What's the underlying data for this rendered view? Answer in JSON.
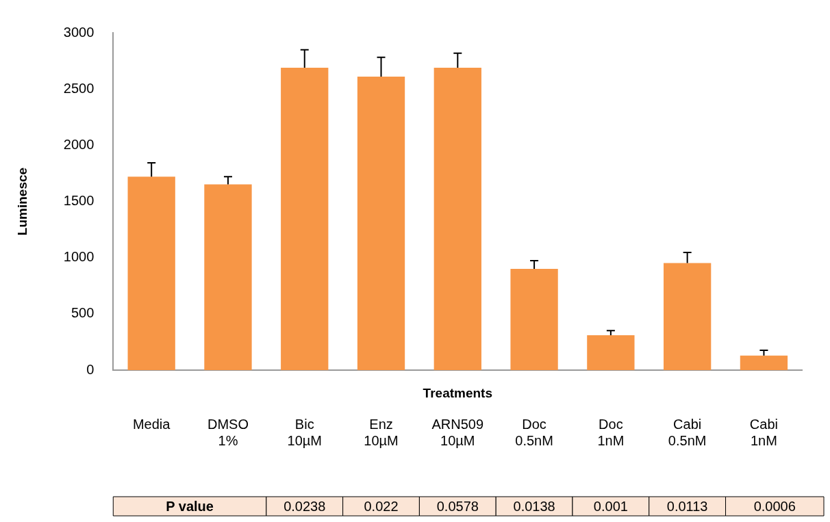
{
  "chart_data": {
    "type": "bar",
    "xlabel": "Treatments",
    "ylabel": "Luminesce",
    "categories": [
      "Media",
      "DMSO 1%",
      "Bic 10µM",
      "Enz 10µM",
      "ARN509 10µM",
      "Doc 0.5nM",
      "Doc 1nM",
      "Cabi 0.5nM",
      "Cabi 1nM"
    ],
    "values": [
      1720,
      1652,
      2689,
      2611,
      2689,
      901,
      311,
      953,
      130
    ],
    "errors": [
      [
        1720,
        1844
      ],
      [
        1652,
        1720
      ],
      [
        2689,
        2850
      ],
      [
        2611,
        2782
      ],
      [
        2689,
        2819
      ],
      [
        901,
        974
      ],
      [
        311,
        352
      ],
      [
        953,
        1047
      ],
      [
        130,
        176
      ]
    ],
    "color": "#f79646",
    "ylim": [
      0,
      3000
    ],
    "yticks": [
      0,
      500,
      1000,
      1500,
      2000,
      2500,
      3000
    ],
    "grid": false,
    "legend": false,
    "annotations": [
      "P value",
      "0.0238",
      "0.022",
      "0.0578",
      "0.0138",
      "0.001",
      "0.0113",
      "0.0006"
    ]
  }
}
